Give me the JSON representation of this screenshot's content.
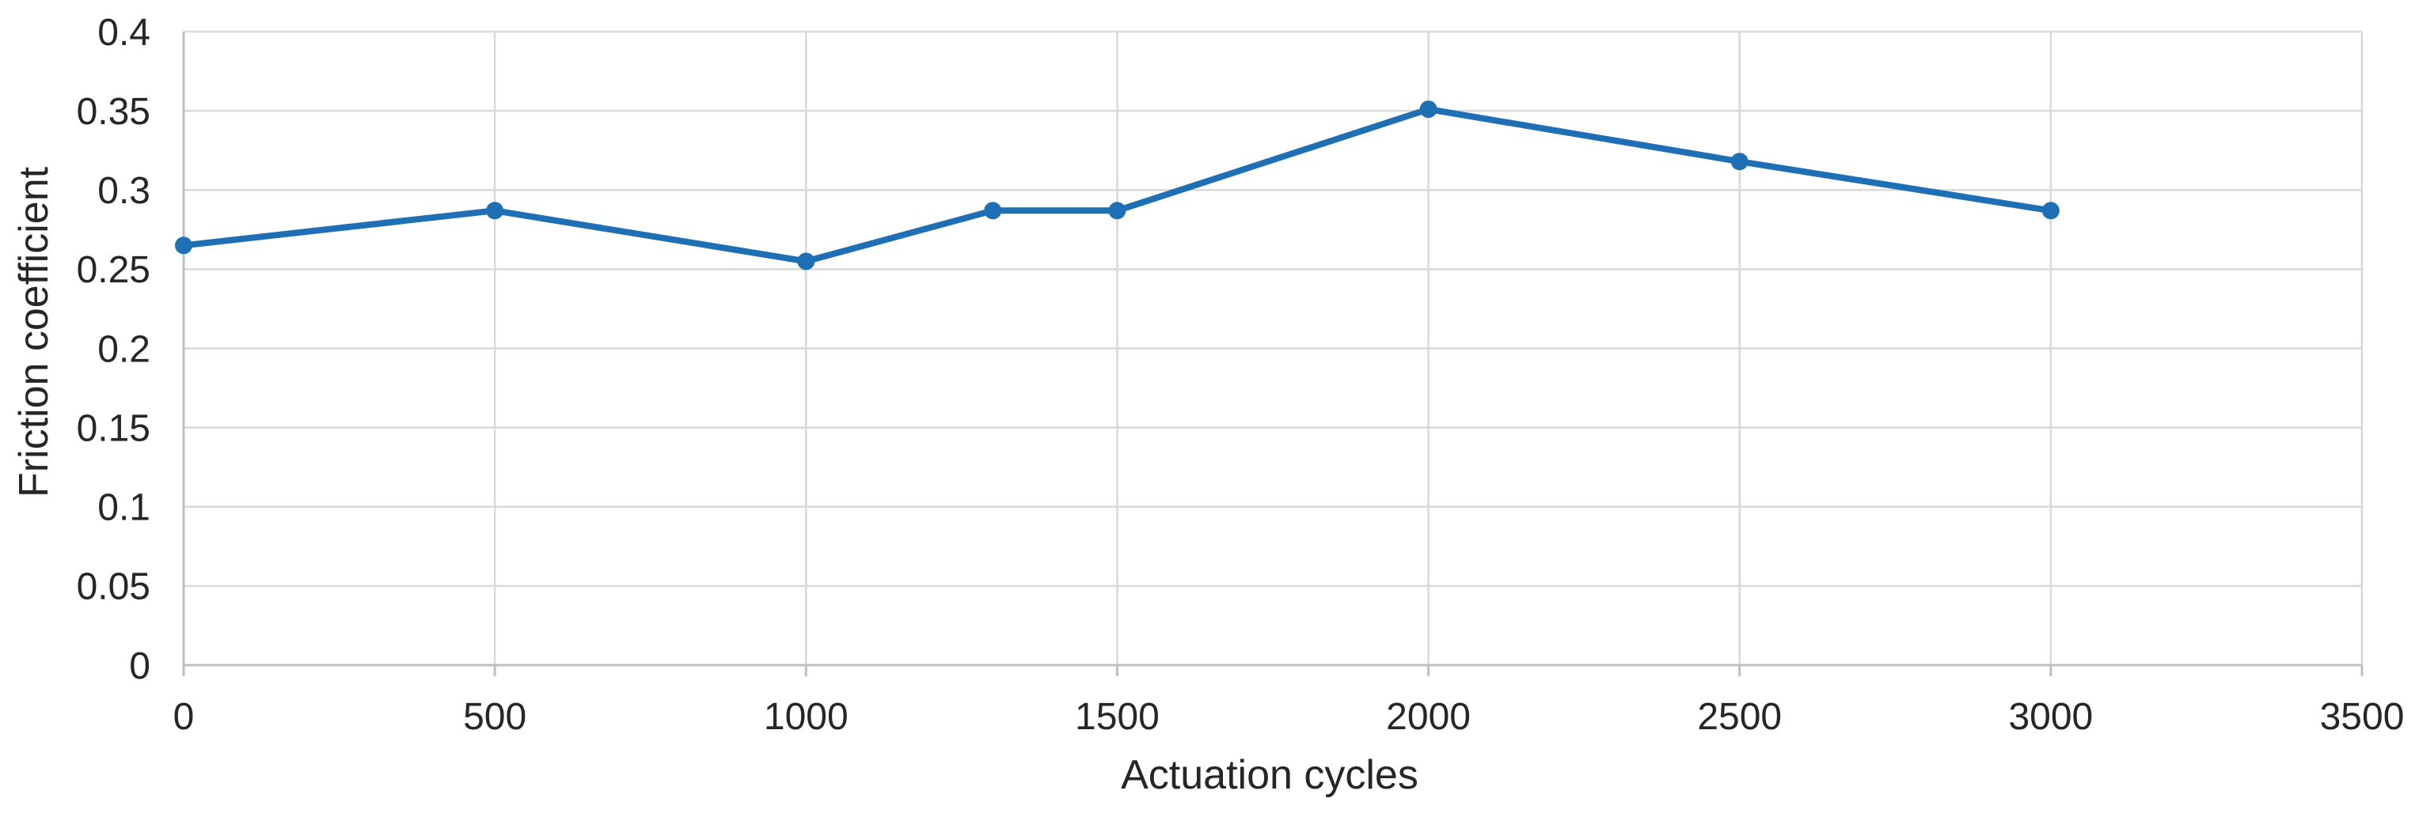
{
  "chart_data": {
    "type": "line",
    "title": "",
    "xlabel": "Actuation cycles",
    "ylabel": "Friction coefficient",
    "x": [
      0,
      500,
      1000,
      1300,
      1500,
      2000,
      2500,
      3000
    ],
    "series": [
      {
        "name": "Friction coefficient",
        "values": [
          0.265,
          0.287,
          0.255,
          0.287,
          0.287,
          0.351,
          0.318,
          0.287
        ]
      }
    ],
    "xlim": [
      0,
      3500
    ],
    "ylim": [
      0,
      0.4
    ],
    "x_ticks": [
      0,
      500,
      1000,
      1500,
      2000,
      2500,
      3000,
      3500
    ],
    "y_ticks": [
      0,
      0.05,
      0.1,
      0.15,
      0.2,
      0.25,
      0.3,
      0.35,
      0.4
    ],
    "x_tick_labels": [
      "0",
      "500",
      "1000",
      "1500",
      "2000",
      "2500",
      "3000",
      "3500"
    ],
    "y_tick_labels": [
      "0",
      "0.05",
      "0.1",
      "0.15",
      "0.2",
      "0.25",
      "0.3",
      "0.35",
      "0.4"
    ],
    "grid": true,
    "legend": false,
    "marker": "circle",
    "colors": {
      "line": "#1F6FB4",
      "marker": "#1F6FB4",
      "gridline": "#D9D9D9",
      "axis": "#BFBFBF",
      "text": "#262626",
      "background": "#FFFFFF"
    }
  }
}
